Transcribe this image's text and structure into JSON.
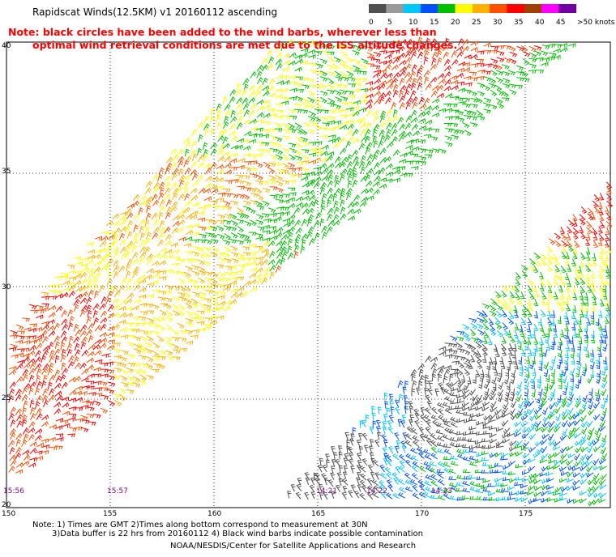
{
  "title": "Rapidscat Winds(12.5KM)  v1  20160112  ascending",
  "note": {
    "line1": "Note: black circles have been added to the wind barbs, wherever less than",
    "line2": "optimal wind retrieval conditions are met due to the ISS altitude changes."
  },
  "colorbar": {
    "labels": [
      "0",
      "5",
      "10",
      "15",
      "20",
      "25",
      "30",
      "35",
      "40",
      "45",
      ">50 knots"
    ],
    "colors": [
      "#505050",
      "#9a9a9a",
      "#00c8ff",
      "#0050ff",
      "#00c000",
      "#ffff00",
      "#ffb000",
      "#ff5000",
      "#ff0000",
      "#a04000",
      "#ff00ff",
      "#7000a0"
    ]
  },
  "axes": {
    "lat_labels": [
      "40",
      "35",
      "30",
      "25",
      "20"
    ],
    "lon_labels": [
      "150",
      "155",
      "160",
      "165",
      "170",
      "175"
    ]
  },
  "time_labels": [
    "15:56",
    "15:57",
    "14:21",
    "14:22",
    "14:23"
  ],
  "footer": {
    "line1": "Note: 1) Times are GMT  2)Times along bottom correspond to measurement at 30N",
    "line2": "3)Data buffer is 22 hrs from 20160112  4) Black wind barbs indicate possible contamination",
    "line3": "NOAA/NESDIS/Center for Satellite Applications and Research"
  }
}
